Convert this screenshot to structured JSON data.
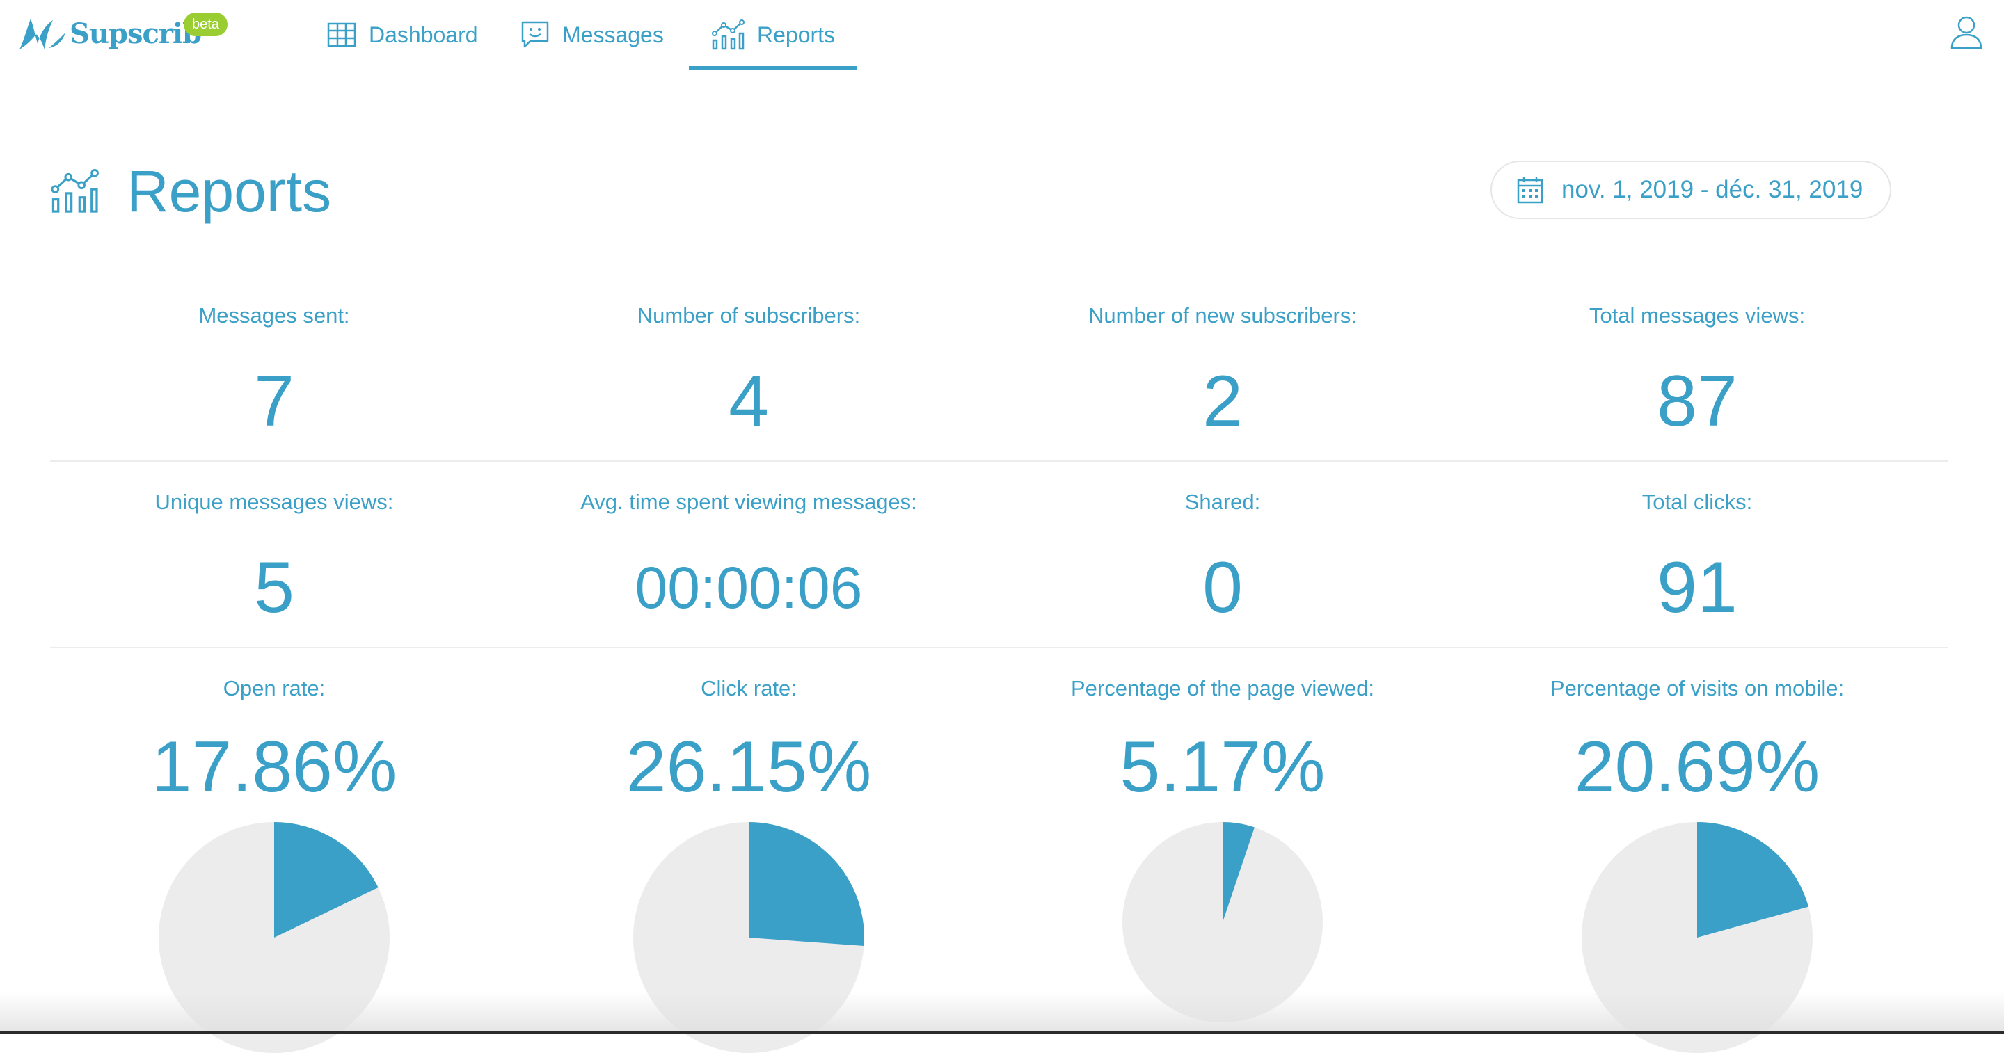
{
  "brand": {
    "name": "Supscrib",
    "badge": "beta"
  },
  "nav": {
    "items": [
      {
        "label": "Dashboard",
        "icon": "table-grid-icon"
      },
      {
        "label": "Messages",
        "icon": "chat-smile-icon"
      },
      {
        "label": "Reports",
        "icon": "bar-chart-trend-icon",
        "active": true
      }
    ],
    "user_icon": "user-icon"
  },
  "page": {
    "title": "Reports",
    "icon": "bar-chart-trend-icon",
    "date_range": "nov. 1, 2019 - déc. 31, 2019"
  },
  "stats": [
    {
      "label": "Messages sent:",
      "value": "7"
    },
    {
      "label": "Number of subscribers:",
      "value": "4"
    },
    {
      "label": "Number of new subscribers:",
      "value": "2"
    },
    {
      "label": "Total messages views:",
      "value": "87"
    },
    {
      "label": "Unique messages views:",
      "value": "5"
    },
    {
      "label": "Avg. time spent viewing messages:",
      "value": "00:00:06"
    },
    {
      "label": "Shared:",
      "value": "0"
    },
    {
      "label": "Total clicks:",
      "value": "91"
    }
  ],
  "rates": [
    {
      "label": "Open rate:",
      "value": "17.86%",
      "fraction": 0.1786
    },
    {
      "label": "Click rate:",
      "value": "26.15%",
      "fraction": 0.2615
    },
    {
      "label": "Percentage of the page viewed:",
      "value": "5.17%",
      "fraction": 0.0517
    },
    {
      "label": "Percentage of visits on mobile:",
      "value": "20.69%",
      "fraction": 0.2069
    }
  ],
  "colors": {
    "accent": "#3aa0c7",
    "pie_rest": "#ececec",
    "badge": "#9acd32",
    "divider": "#ececec"
  }
}
